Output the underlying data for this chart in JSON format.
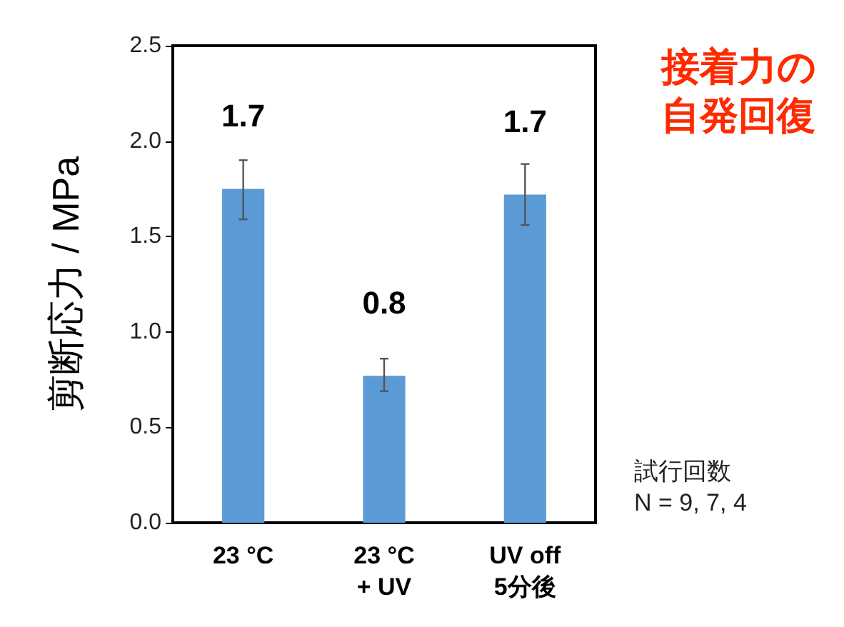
{
  "chart_data": {
    "type": "bar",
    "ylabel": "剪断応力 / MPa",
    "categories": [
      "23 °C",
      "23 °C\n+ UV",
      "UV off\n5分後"
    ],
    "values": [
      1.75,
      0.77,
      1.72
    ],
    "errors": [
      [
        1.59,
        1.9
      ],
      [
        0.69,
        0.86
      ],
      [
        1.56,
        1.88
      ]
    ],
    "value_labels": [
      "1.7",
      "0.8",
      "1.7"
    ],
    "color": "#5b9bd5",
    "ylim": [
      0,
      2.5
    ],
    "yticks": [
      {
        "value": 0,
        "label": "0.0"
      },
      0.5,
      {
        "value": 1,
        "label": "1.0"
      },
      1.5,
      {
        "value": 2,
        "label": "2.0"
      },
      2.5
    ],
    "grid": false,
    "annotations": [
      "接着力の自発回復",
      "試行回数\nN = 9, 7, 4"
    ]
  }
}
